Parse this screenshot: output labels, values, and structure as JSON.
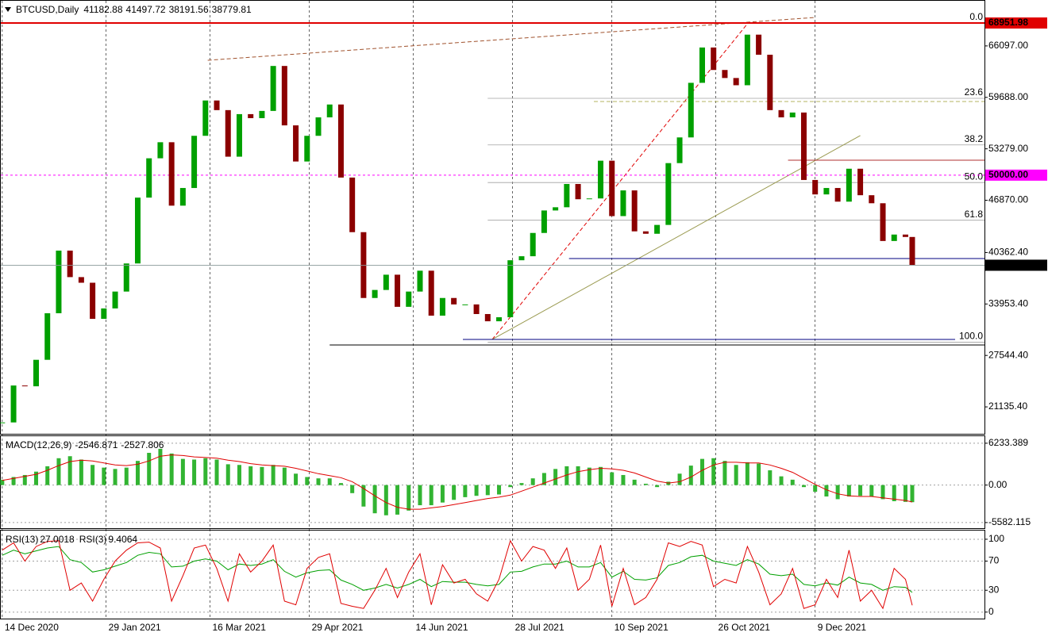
{
  "chart_data": {
    "type": "candlestick",
    "symbol": "BTCUSD,Daily",
    "ohlc": [
      41182.88,
      41497.72,
      38191.56,
      38779.81
    ],
    "x": [
      "2020-12-14",
      "2020-12-19",
      "2020-12-24",
      "2020-12-29",
      "2021-01-03",
      "2021-01-08",
      "2021-01-13",
      "2021-01-18",
      "2021-01-23",
      "2021-01-28",
      "2021-02-02",
      "2021-02-07",
      "2021-02-12",
      "2021-02-17",
      "2021-02-22",
      "2021-02-27",
      "2021-03-04",
      "2021-03-09",
      "2021-03-14",
      "2021-03-19",
      "2021-03-24",
      "2021-03-29",
      "2021-04-03",
      "2021-04-08",
      "2021-04-13",
      "2021-04-18",
      "2021-04-23",
      "2021-04-28",
      "2021-05-03",
      "2021-05-08",
      "2021-05-13",
      "2021-05-18",
      "2021-05-23",
      "2021-05-28",
      "2021-06-02",
      "2021-06-07",
      "2021-06-12",
      "2021-06-17",
      "2021-06-22",
      "2021-06-27",
      "2021-07-02",
      "2021-07-07",
      "2021-07-12",
      "2021-07-17",
      "2021-07-22",
      "2021-07-27",
      "2021-08-01",
      "2021-08-06",
      "2021-08-11",
      "2021-08-16",
      "2021-08-21",
      "2021-08-26",
      "2021-08-31",
      "2021-09-05",
      "2021-09-10",
      "2021-09-15",
      "2021-09-20",
      "2021-09-25",
      "2021-09-30",
      "2021-10-05",
      "2021-10-10",
      "2021-10-15",
      "2021-10-20",
      "2021-10-25",
      "2021-10-30",
      "2021-11-04",
      "2021-11-09",
      "2021-11-14",
      "2021-11-19",
      "2021-11-24",
      "2021-11-29",
      "2021-12-04",
      "2021-12-09",
      "2021-12-14",
      "2021-12-19",
      "2021-12-24",
      "2021-12-29",
      "2022-01-03",
      "2022-01-08",
      "2022-01-13",
      "2022-01-18",
      "2022-01-21"
    ],
    "xlim": [
      "2020-12-13",
      "2022-02-22"
    ],
    "xticks": [
      {
        "value": "2020-12-14",
        "label": "14 Dec 2020"
      },
      {
        "value": "2021-01-29",
        "label": "29 Jan 2021"
      },
      {
        "value": "2021-03-16",
        "label": "16 Mar 2021"
      },
      {
        "value": "2021-04-29",
        "label": "29 Apr 2021"
      },
      {
        "value": "2021-06-14",
        "label": "14 Jun 2021"
      },
      {
        "value": "2021-07-28",
        "label": "28 Jul 2021"
      },
      {
        "value": "2021-09-10",
        "label": "10 Sep 2021"
      },
      {
        "value": "2021-10-26",
        "label": "26 Oct 2021"
      },
      {
        "value": "2021-12-09",
        "label": "9 Dec 2021"
      }
    ],
    "close": [
      19200,
      23800,
      23700,
      27000,
      32800,
      40600,
      37300,
      36600,
      32100,
      33400,
      35500,
      39000,
      47200,
      52100,
      54100,
      46200,
      48400,
      54900,
      59300,
      58100,
      52300,
      57600,
      57100,
      58000,
      63600,
      56200,
      51700,
      54900,
      57200,
      58800,
      49700,
      42900,
      34700,
      35700,
      37600,
      33600,
      35500,
      38100,
      32500,
      34700,
      33900,
      33900,
      32700,
      31800,
      32300,
      39400,
      39900,
      42800,
      45600,
      46000,
      48900,
      47000,
      47100,
      51800,
      44900,
      48100,
      43000,
      42700,
      43800,
      51500,
      54700,
      61500,
      65900,
      63100,
      62100,
      61200,
      67500,
      65000,
      58100,
      57200,
      57800,
      49400,
      47600,
      48400,
      46700,
      50800,
      47500,
      46500,
      41800,
      42600,
      42300,
      38779.81
    ],
    "up_color": "#00a000",
    "down_color": "#8b0000",
    "current_color": "#000000",
    "ylim": [
      17783,
      71816
    ],
    "yticks": [
      {
        "value": 21135.4,
        "label": "21135.40"
      },
      {
        "value": 27544.4,
        "label": "27544.40"
      },
      {
        "value": 33953.4,
        "label": "33953.40"
      },
      {
        "value": 40362.4,
        "label": "40362.40"
      },
      {
        "value": 46870,
        "label": "46870.00"
      },
      {
        "value": 53279,
        "label": "53279.00"
      },
      {
        "value": 59688,
        "label": "59688.00"
      },
      {
        "value": 66097,
        "label": "66097.00"
      }
    ],
    "hlines": [
      {
        "value": 68951.98,
        "color": "#e00000"
      },
      {
        "value": 50000,
        "label": "50000.00",
        "color": "#ff00ff",
        "dash": true
      }
    ],
    "fibonacci": {
      "high": 68951.98,
      "low": 29200,
      "x": [
        "2021-07-17",
        "2022-02-22"
      ],
      "color": "#a0a0a0",
      "levels": [
        {
          "value": 0,
          "label": "0.0"
        },
        {
          "value": 23.6,
          "label": "23.6"
        },
        {
          "value": 38.2,
          "label": "38.2"
        },
        {
          "value": 50,
          "label": "50.0"
        },
        {
          "value": 61.8,
          "label": "61.8"
        },
        {
          "value": 100,
          "label": "100.0"
        }
      ]
    },
    "drawings": [
      {
        "x": [
          "2021-03-15",
          "2021-12-09"
        ],
        "y": [
          64309,
          69643
        ],
        "color": "#a0522d",
        "dash": true
      },
      {
        "x": [
          "2021-07-19",
          "2021-11-09"
        ],
        "y": [
          29540,
          68853
        ],
        "color": "#e00000",
        "dash": true
      },
      {
        "x": [
          "2021-07-19",
          "2021-12-29"
        ],
        "y": [
          29540,
          54925
        ],
        "color": "#9a9a50"
      },
      {
        "x": [
          "2021-08-22",
          "2022-02-22"
        ],
        "y": [
          39614,
          39614
        ],
        "color": "#000080"
      },
      {
        "x": [
          "2021-07-06",
          "2022-02-09"
        ],
        "y": [
          29540,
          29540
        ],
        "color": "#000080"
      },
      {
        "x": [
          "2021-05-08",
          "2022-02-22"
        ],
        "y": [
          28847,
          28847
        ],
        "color": "#000000"
      },
      {
        "x": [
          "2021-11-27",
          "2022-02-22"
        ],
        "y": [
          51863,
          51863
        ],
        "color": "#b03030"
      },
      {
        "x": [
          "2021-09-02",
          "2022-02-22"
        ],
        "y": [
          59172,
          59172
        ],
        "color": "#b5b560",
        "dash": true
      }
    ],
    "macd": {
      "type": "macd",
      "name": "MACD(12,26,9)",
      "ylim": [
        -6420,
        7400
      ],
      "yticks": [
        6233.389,
        {
          "value": 0,
          "label": "0.00"
        },
        -5582.115
      ],
      "histogram": {
        "color": "#32b432",
        "values": [
          800,
          1200,
          1500,
          2000,
          2800,
          4000,
          4300,
          3800,
          3000,
          2600,
          2400,
          2600,
          3600,
          4800,
          5400,
          4700,
          3900,
          3800,
          4000,
          3800,
          3100,
          3000,
          2800,
          2700,
          3000,
          2600,
          1700,
          1200,
          1000,
          1000,
          300,
          -1200,
          -3200,
          -4200,
          -4500,
          -4400,
          -3800,
          -3000,
          -3000,
          -2600,
          -2200,
          -1800,
          -1600,
          -1500,
          -1400,
          -300,
          300,
          1000,
          1800,
          2400,
          2800,
          2800,
          2600,
          2700,
          1900,
          1500,
          800,
          200,
          -300,
          500,
          1700,
          2900,
          3900,
          4000,
          3600,
          3000,
          3400,
          3200,
          2200,
          1300,
          800,
          -300,
          -1000,
          -1700,
          -2100,
          -1700,
          -1600,
          -1700,
          -2100,
          -2400,
          -2500,
          -2546.871
        ]
      },
      "signal": {
        "color": "#e00000",
        "values": [
          700,
          1000,
          1300,
          1600,
          2200,
          2900,
          3500,
          3700,
          3600,
          3300,
          3000,
          2900,
          3100,
          3600,
          4300,
          4500,
          4400,
          4200,
          4100,
          4000,
          3700,
          3500,
          3200,
          3000,
          2900,
          2800,
          2500,
          2100,
          1700,
          1400,
          1100,
          500,
          -500,
          -1600,
          -2600,
          -3300,
          -3600,
          -3600,
          -3400,
          -3200,
          -2900,
          -2600,
          -2300,
          -2000,
          -1800,
          -1500,
          -900,
          -300,
          300,
          900,
          1500,
          2000,
          2300,
          2500,
          2400,
          2200,
          1800,
          1200,
          600,
          300,
          500,
          1200,
          2200,
          3000,
          3400,
          3400,
          3300,
          3300,
          3000,
          2500,
          1900,
          1000,
          100,
          -700,
          -1300,
          -1600,
          -1700,
          -1700,
          -1900,
          -2100,
          -2300,
          -2527.806
        ]
      }
    },
    "rsi": {
      "type": "line",
      "ylim": [
        -10,
        113
      ],
      "yticks": [
        100,
        70,
        30,
        0
      ],
      "series": [
        {
          "name": "RSI(13)",
          "color": "#00a000",
          "values": [
            78,
            85,
            80,
            84,
            88,
            90,
            72,
            68,
            55,
            58,
            63,
            68,
            78,
            82,
            80,
            62,
            63,
            70,
            73,
            70,
            58,
            66,
            64,
            66,
            72,
            56,
            48,
            54,
            57,
            58,
            44,
            38,
            30,
            33,
            38,
            33,
            38,
            45,
            35,
            42,
            41,
            41,
            38,
            36,
            38,
            55,
            56,
            62,
            66,
            66,
            70,
            62,
            62,
            68,
            48,
            56,
            45,
            44,
            47,
            64,
            68,
            76,
            78,
            70,
            67,
            64,
            72,
            66,
            52,
            50,
            52,
            38,
            36,
            40,
            37,
            48,
            40,
            38,
            30,
            35,
            34,
            27.0018
          ]
        },
        {
          "name": "RSI(3)",
          "color": "#e00000",
          "values": [
            85,
            95,
            70,
            90,
            97,
            98,
            30,
            40,
            15,
            45,
            70,
            85,
            95,
            96,
            88,
            15,
            50,
            88,
            92,
            60,
            15,
            80,
            55,
            70,
            92,
            15,
            10,
            60,
            75,
            80,
            12,
            8,
            5,
            30,
            60,
            20,
            55,
            80,
            10,
            65,
            40,
            45,
            25,
            15,
            45,
            98,
            70,
            90,
            85,
            60,
            88,
            30,
            45,
            92,
            8,
            60,
            10,
            20,
            45,
            95,
            90,
            97,
            92,
            35,
            45,
            40,
            90,
            55,
            10,
            25,
            60,
            5,
            10,
            45,
            20,
            85,
            15,
            30,
            5,
            60,
            45,
            9.4064
          ]
        }
      ]
    }
  }
}
